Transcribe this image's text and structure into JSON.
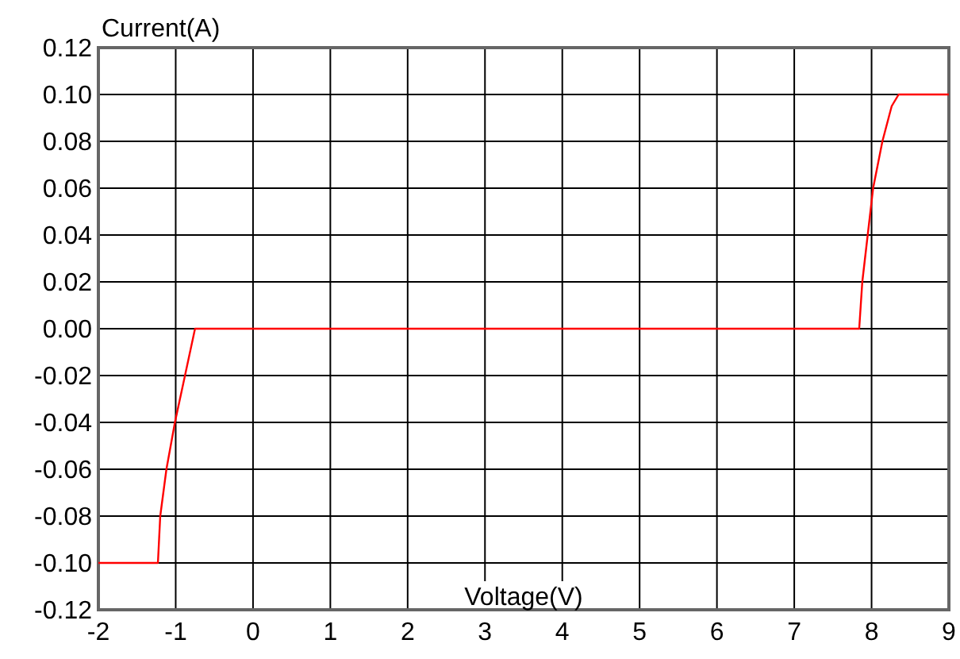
{
  "chart_data": {
    "type": "line",
    "xlabel": "Voltage(V)",
    "ylabel": "Current(A)",
    "xlim": [
      -2,
      9
    ],
    "ylim": [
      -0.12,
      0.12
    ],
    "xticks": [
      -2,
      -1,
      0,
      1,
      2,
      3,
      4,
      5,
      6,
      7,
      8,
      9
    ],
    "yticks": [
      {
        "value": -0.12,
        "label": "-0.12"
      },
      {
        "value": -0.1,
        "label": "-0.10"
      },
      {
        "value": -0.08,
        "label": "-0.08"
      },
      {
        "value": -0.06,
        "label": "-0.06"
      },
      {
        "value": -0.04,
        "label": "-0.04"
      },
      {
        "value": -0.02,
        "label": "-0.02"
      },
      {
        "value": 0,
        "label": "0.00"
      },
      {
        "value": 0.02,
        "label": "0.02"
      },
      {
        "value": 0.04,
        "label": "0.04"
      },
      {
        "value": 0.06,
        "label": "0.06"
      },
      {
        "value": 0.08,
        "label": "0.08"
      },
      {
        "value": 0.1,
        "label": "0.10"
      },
      {
        "value": 0.12,
        "label": "0.12"
      }
    ],
    "grid": true,
    "marker": "none",
    "line_style": "solid",
    "x": [
      -2,
      -1.23,
      -1.2,
      -1.12,
      -1.01,
      -0.75,
      7.84,
      7.88,
      7.95,
      8.02,
      8.14,
      8.26,
      8.35,
      9
    ],
    "series": [
      {
        "color": "#ff0000",
        "values": [
          -0.1,
          -0.1,
          -0.08,
          -0.06,
          -0.04,
          0,
          0,
          0.02,
          0.04,
          0.06,
          0.08,
          0.095,
          0.1,
          0.1
        ]
      }
    ]
  }
}
